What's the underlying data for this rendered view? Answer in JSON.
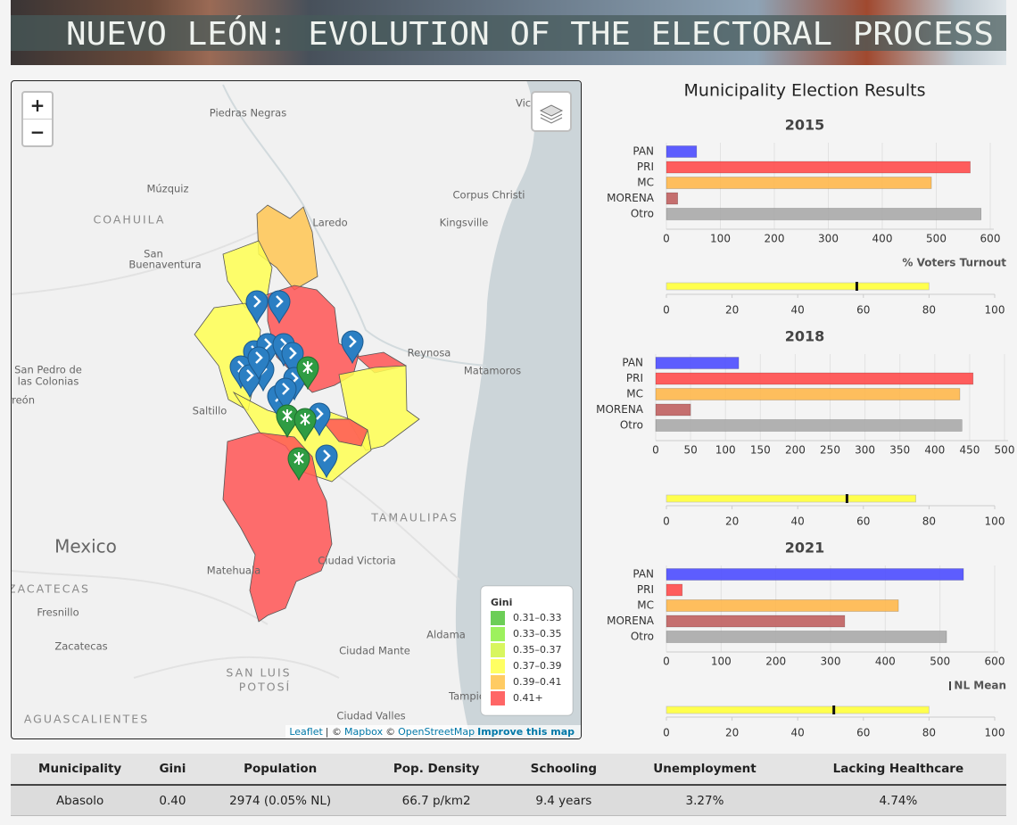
{
  "header": {
    "title": "NUEVO LEÓN: EVOLUTION OF THE ELECTORAL PROCESS"
  },
  "map": {
    "zoom_in": "+",
    "zoom_out": "−",
    "labels": [
      "Piedras Negras",
      "Múzquiz",
      "COAHUILA",
      "San",
      "Buenaventura",
      "Laredo",
      "Kingsville",
      "Corpus Christi",
      "Victoria",
      "Reynosa",
      "Matamoros",
      "San Pedro de",
      "las Colonias",
      "Torreón",
      "Saltillo",
      "Mexico",
      "TAMAULIPAS",
      "Ciudad Victoria",
      "Matehuala",
      "ZACATECAS",
      "Fresnillo",
      "Zacatecas",
      "Aldama",
      "Ciudad Mante",
      "SAN LUIS",
      "POTOSÍ",
      "AGUASCALIENTES",
      "Ciudad Valles",
      "Tampico"
    ],
    "legend": {
      "title": "Gini",
      "items": [
        {
          "label": "0.31–0.33",
          "color": "#5cc945"
        },
        {
          "label": "0.33–0.35",
          "color": "#92ef4c"
        },
        {
          "label": "0.35–0.37",
          "color": "#d4f54e"
        },
        {
          "label": "0.37–0.39",
          "color": "#ffff52"
        },
        {
          "label": "0.39–0.41",
          "color": "#ffc552"
        },
        {
          "label": "0.41+",
          "color": "#ff5555"
        }
      ]
    },
    "attribution": [
      "Leaflet",
      "| ©",
      "Mapbox",
      "©",
      "OpenStreetMap",
      "Improve this map"
    ]
  },
  "results": {
    "title": "Municipality Election Results",
    "turnout_label": "%  Voters Turnout",
    "mean_label": "NL Mean",
    "charts": [
      {
        "title": "2015",
        "categories": [
          "PAN",
          "PRI",
          "MC",
          "MORENA",
          "Otro"
        ],
        "colors": [
          "#4d4dff",
          "#ff4d4d",
          "#ffb84d",
          "#c06060",
          "#aaaaaa"
        ],
        "values": [
          56,
          563,
          491,
          21,
          583
        ],
        "xlim": [
          0,
          600
        ],
        "xticks": [
          0,
          100,
          200,
          300,
          400,
          500,
          600
        ],
        "turnout": {
          "value": 80,
          "mean": 58,
          "xlim": [
            0,
            100
          ],
          "xticks": [
            0,
            20,
            40,
            60,
            80,
            100
          ]
        }
      },
      {
        "title": "2018",
        "categories": [
          "PAN",
          "PRI",
          "MC",
          "MORENA",
          "Otro"
        ],
        "colors": [
          "#4d4dff",
          "#ff4d4d",
          "#ffb84d",
          "#c06060",
          "#aaaaaa"
        ],
        "values": [
          119,
          455,
          436,
          50,
          439
        ],
        "xlim": [
          0,
          500
        ],
        "xticks": [
          0,
          50,
          100,
          150,
          200,
          250,
          300,
          350,
          400,
          450,
          500
        ],
        "turnout": {
          "value": 76,
          "mean": 55,
          "xlim": [
            0,
            100
          ],
          "xticks": [
            0,
            20,
            40,
            60,
            80,
            100
          ]
        }
      },
      {
        "title": "2021",
        "categories": [
          "PAN",
          "PRI",
          "MC",
          "MORENA",
          "Otro"
        ],
        "colors": [
          "#4d4dff",
          "#ff4d4d",
          "#ffb84d",
          "#c06060",
          "#aaaaaa"
        ],
        "values": [
          543,
          29,
          424,
          326,
          512
        ],
        "xlim": [
          0,
          600
        ],
        "xticks": [
          0,
          100,
          200,
          300,
          400,
          500,
          600
        ],
        "turnout": {
          "value": 80,
          "mean": 51,
          "xlim": [
            0,
            100
          ],
          "xticks": [
            0,
            20,
            40,
            60,
            80,
            100
          ]
        }
      }
    ]
  },
  "table": {
    "columns": [
      "Municipality",
      "Gini",
      "Population",
      "Pop. Density",
      "Schooling",
      "Unemployment",
      "Lacking Healthcare"
    ],
    "rows": [
      [
        "Abasolo",
        "0.40",
        "2974 (0.05% NL)",
        "66.7 p/km2",
        "9.4 years",
        "3.27%",
        "4.74%"
      ]
    ]
  }
}
